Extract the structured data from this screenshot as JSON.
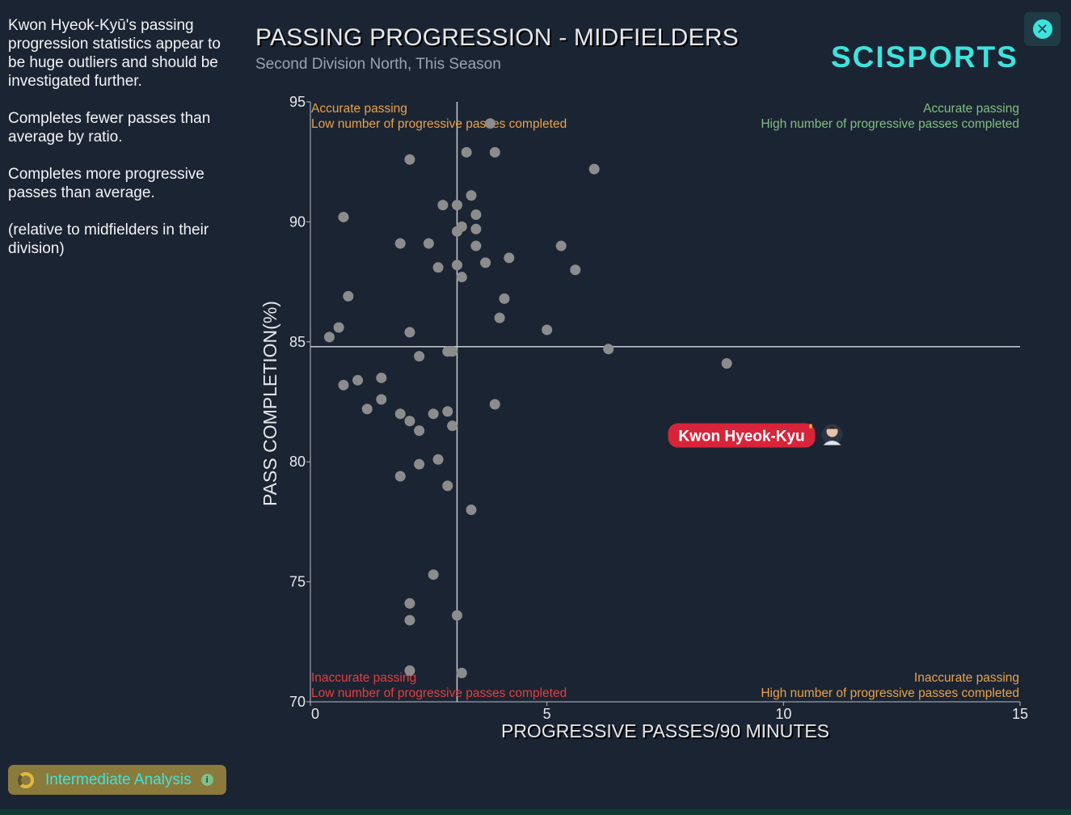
{
  "sidebar": {
    "paragraphs": [
      "Kwon Hyeok-Kyū's passing progression statistics appear to be huge outliers and should be investigated further.",
      "Completes fewer passes than average by ratio.",
      "Completes more progressive passes than average.",
      "(relative to midfielders in their division)"
    ]
  },
  "header": {
    "title": "PASSING PROGRESSION - MIDFIELDERS",
    "subtitle": "Second Division North, This Season",
    "logo": "SCISPORTS"
  },
  "footer": {
    "badge_label": "Intermediate Analysis"
  },
  "colors": {
    "background": "#1b2433",
    "point": "#8c8c8c",
    "accent": "#3ee3dd",
    "highlight": "#d8243a",
    "quad_top_left": "#e8a24a",
    "quad_top_right": "#7fbf7f",
    "quad_bottom_left": "#e0403e",
    "quad_bottom_right": "#e8a24a"
  },
  "icons": {
    "close": "close-circle-icon",
    "badge": "progress-ring-icon",
    "info": "info-icon",
    "player": "player-avatar-icon"
  },
  "chart_data": {
    "type": "scatter",
    "title": "PASSING PROGRESSION - MIDFIELDERS",
    "subtitle": "Second Division North, This Season",
    "xlabel": "PROGRESSIVE PASSES/90 MINUTES",
    "ylabel": "PASS COMPLETION(%)",
    "xlim": [
      0,
      15
    ],
    "ylim": [
      70,
      95
    ],
    "xticks": [
      "0",
      "5",
      "10",
      "15"
    ],
    "yticks": [
      "70",
      "75",
      "80",
      "85",
      "90",
      "95"
    ],
    "grid": false,
    "average_x": 3.1,
    "average_y": 84.8,
    "quadrant_labels": {
      "top_left": [
        "Accurate passing",
        "Low number of progressive passes completed"
      ],
      "top_right": [
        "Accurate passing",
        "High number of progressive passes completed"
      ],
      "bottom_left": [
        "Inaccurate passing",
        "Low number of progressive passes completed"
      ],
      "bottom_right": [
        "Inaccurate passing",
        "High number of progressive passes completed"
      ]
    },
    "points": [
      [
        3.8,
        94.1
      ],
      [
        2.1,
        92.6
      ],
      [
        3.3,
        92.9
      ],
      [
        3.9,
        92.9
      ],
      [
        6.0,
        92.2
      ],
      [
        3.4,
        91.1
      ],
      [
        2.8,
        90.7
      ],
      [
        3.1,
        90.7
      ],
      [
        3.5,
        90.3
      ],
      [
        0.7,
        90.2
      ],
      [
        3.2,
        89.8
      ],
      [
        3.1,
        89.6
      ],
      [
        3.5,
        89.7
      ],
      [
        1.9,
        89.1
      ],
      [
        2.5,
        89.1
      ],
      [
        3.5,
        89.0
      ],
      [
        5.3,
        89.0
      ],
      [
        4.2,
        88.5
      ],
      [
        3.7,
        88.3
      ],
      [
        2.7,
        88.1
      ],
      [
        3.1,
        88.2
      ],
      [
        5.6,
        88.0
      ],
      [
        3.2,
        87.7
      ],
      [
        0.8,
        86.9
      ],
      [
        4.1,
        86.8
      ],
      [
        4.0,
        86.0
      ],
      [
        0.6,
        85.6
      ],
      [
        5.0,
        85.5
      ],
      [
        0.4,
        85.2
      ],
      [
        2.1,
        85.4
      ],
      [
        6.3,
        84.7
      ],
      [
        2.9,
        84.6
      ],
      [
        3.0,
        84.6
      ],
      [
        2.3,
        84.4
      ],
      [
        8.8,
        84.1
      ],
      [
        1.5,
        83.5
      ],
      [
        1.0,
        83.4
      ],
      [
        0.7,
        83.2
      ],
      [
        1.5,
        82.6
      ],
      [
        3.9,
        82.4
      ],
      [
        1.2,
        82.2
      ],
      [
        2.9,
        82.1
      ],
      [
        1.9,
        82.0
      ],
      [
        2.6,
        82.0
      ],
      [
        2.1,
        81.7
      ],
      [
        3.0,
        81.5
      ],
      [
        2.3,
        81.3
      ],
      [
        2.7,
        80.1
      ],
      [
        2.3,
        79.9
      ],
      [
        1.9,
        79.4
      ],
      [
        2.9,
        79.0
      ],
      [
        3.4,
        78.0
      ],
      [
        2.6,
        75.3
      ],
      [
        2.1,
        74.1
      ],
      [
        3.1,
        73.6
      ],
      [
        2.1,
        73.4
      ],
      [
        2.1,
        71.3
      ],
      [
        3.2,
        71.2
      ]
    ],
    "highlight": {
      "name": "Kwon Hyeok-Kyu",
      "x": 9.2,
      "y": 81.1
    }
  }
}
